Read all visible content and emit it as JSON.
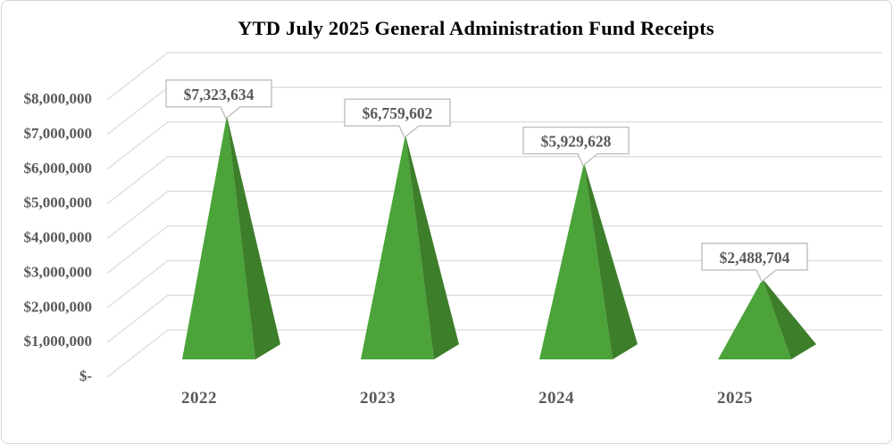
{
  "chart_data": {
    "type": "bar",
    "variant": "3d-pyramid",
    "title": "YTD July 2025 General Administration Fund Receipts",
    "categories": [
      "2022",
      "2023",
      "2024",
      "2025"
    ],
    "values": [
      7323634,
      6759602,
      5929628,
      2488704
    ],
    "data_labels": [
      "$7,323,634",
      "$6,759,602",
      "$5,929,628",
      "$2,488,704"
    ],
    "xlabel": "",
    "ylabel": "",
    "ylim": [
      0,
      8000000
    ],
    "y_ticks": [
      {
        "value": 0,
        "label": "$-"
      },
      {
        "value": 1000000,
        "label": "$1,000,000"
      },
      {
        "value": 2000000,
        "label": "$2,000,000"
      },
      {
        "value": 3000000,
        "label": "$3,000,000"
      },
      {
        "value": 4000000,
        "label": "$4,000,000"
      },
      {
        "value": 5000000,
        "label": "$5,000,000"
      },
      {
        "value": 6000000,
        "label": "$6,000,000"
      },
      {
        "value": 7000000,
        "label": "$7,000,000"
      },
      {
        "value": 8000000,
        "label": "$8,000,000"
      }
    ],
    "grid": true,
    "legend": false,
    "colors": {
      "pyramid_front": "#4ba33a",
      "pyramid_side": "#3d7e2b",
      "gridline": "#d9d9d9",
      "label_text": "#595959",
      "title_text": "#000000",
      "callout_bg": "#ffffff",
      "callout_border": "#bfbfbf",
      "background": "#ffffff",
      "frame_border": "#d6d6d6"
    }
  }
}
